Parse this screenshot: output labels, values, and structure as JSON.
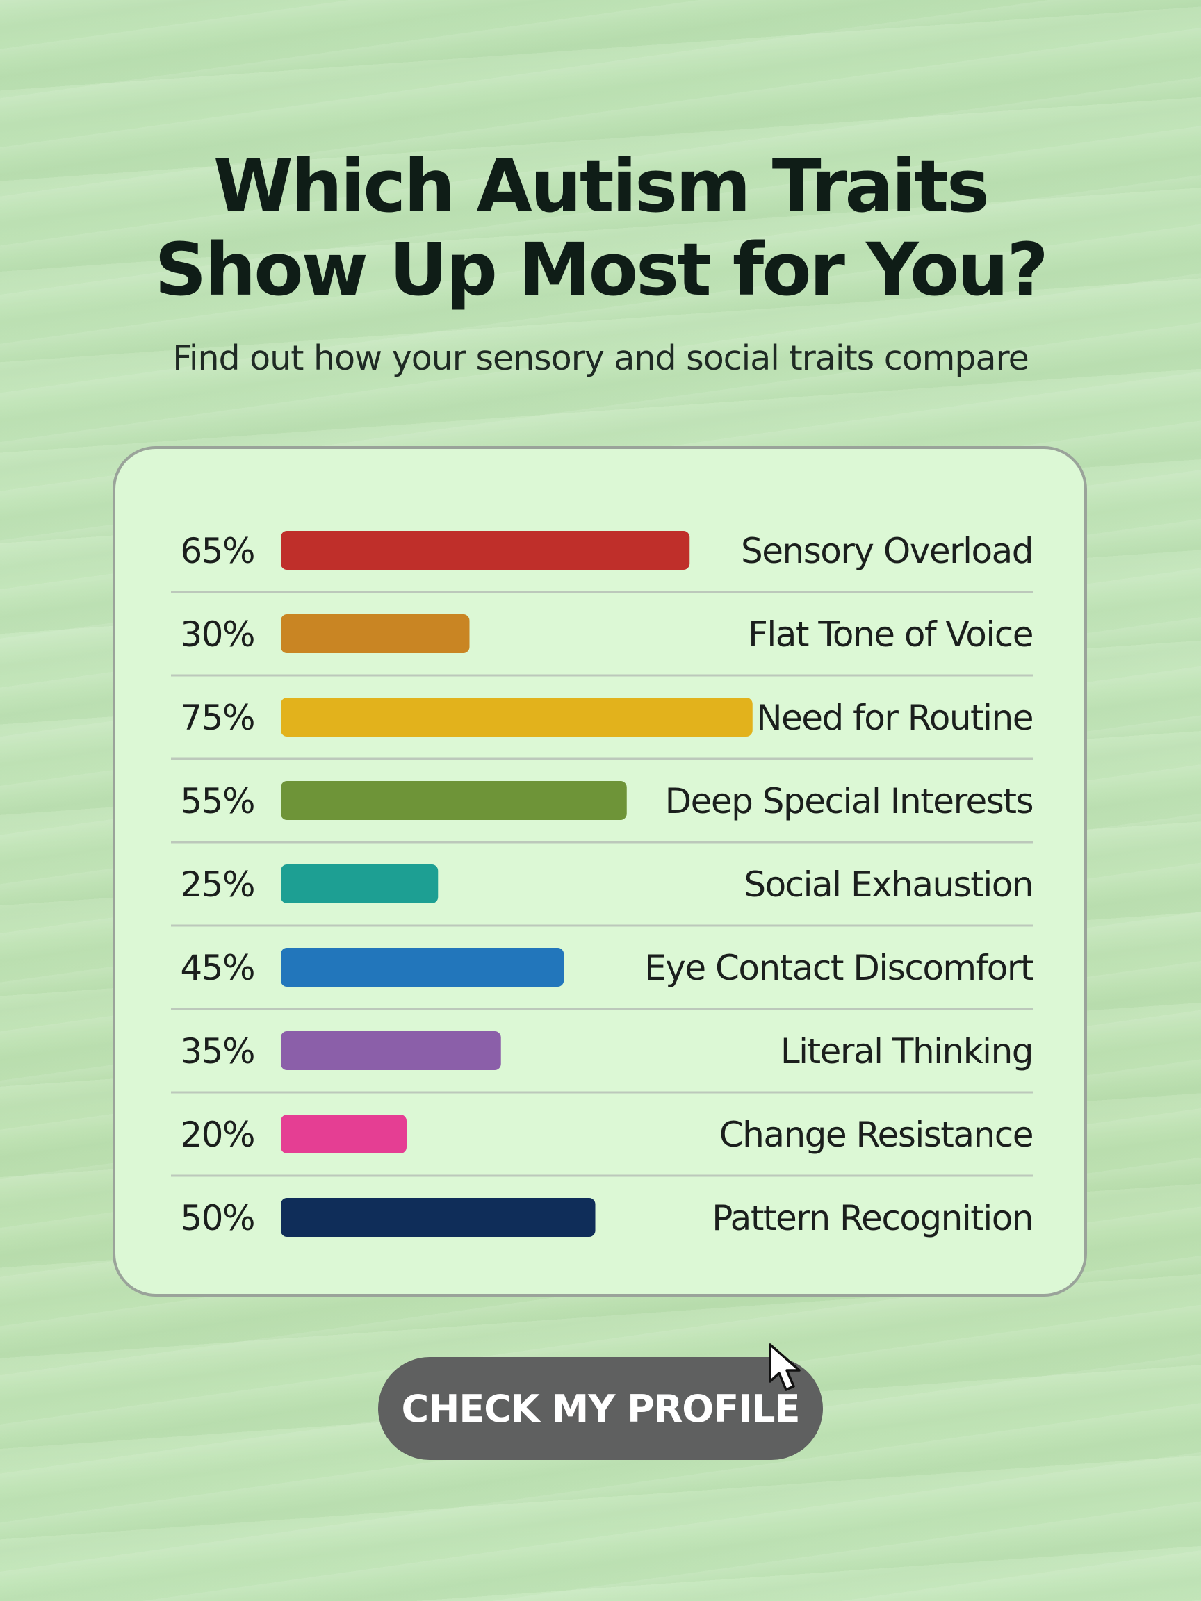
{
  "title_lines": [
    "Which Autism Traits",
    "Show Up Most for You?"
  ],
  "subtitle": "Find out how your sensory and social traits compare",
  "chart_data": {
    "type": "bar",
    "orientation": "horizontal",
    "categories": [
      "Sensory Overload",
      "Flat Tone of Voice",
      "Need for Routine",
      "Deep Special Interests",
      "Social Exhaustion",
      "Eye Contact Discomfort",
      "Literal Thinking",
      "Change Resistance",
      "Pattern Recognition"
    ],
    "values": [
      65,
      30,
      75,
      55,
      25,
      45,
      35,
      20,
      50
    ],
    "value_labels": [
      "65%",
      "30%",
      "75%",
      "55%",
      "25%",
      "45%",
      "35%",
      "20%",
      "50%"
    ],
    "colors": [
      "#bf2f2a",
      "#c98523",
      "#e2b21c",
      "#6e9438",
      "#1d9f93",
      "#2276bb",
      "#8b5fa9",
      "#e53e93",
      "#0f2d59"
    ],
    "value_unit": "%",
    "grid": false,
    "legend": "none"
  },
  "cta": {
    "label": "CHECK MY PROFILE"
  },
  "icons": {
    "cursor": "mouse-pointer-icon"
  }
}
